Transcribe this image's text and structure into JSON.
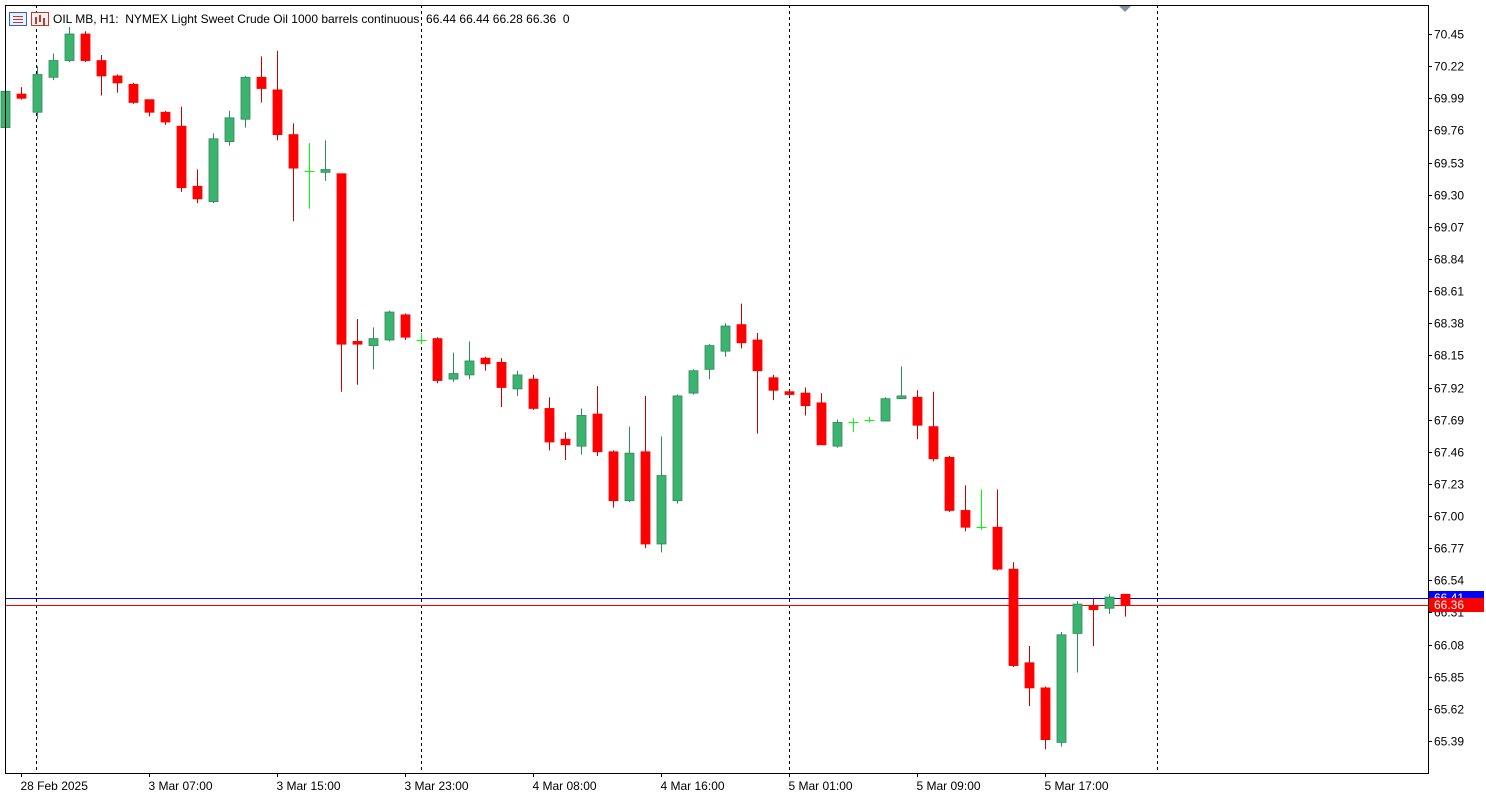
{
  "header": {
    "symbol_info": "OIL MB, H1:  NYMEX Light Sweet Crude Oil 1000 barrels continuous  66.44 66.44 66.28 66.36  0"
  },
  "colors": {
    "bull": "#3cb371",
    "bear": "#ff0000",
    "doji": "#00ff00",
    "bid_line": "#ff0000",
    "ask_line": "#0000ff",
    "background": "#ffffff",
    "axis": "#000000"
  },
  "price_labels": {
    "ask": "66.41",
    "bid": "66.36"
  },
  "chart_data": {
    "type": "candlestick",
    "title": "OIL MB, H1:  NYMEX Light Sweet Crude Oil 1000 barrels continuous",
    "ylim": [
      65.22,
      70.53
    ],
    "y_ticks": [
      70.45,
      70.22,
      69.99,
      69.76,
      69.53,
      69.3,
      69.07,
      68.84,
      68.61,
      68.38,
      68.15,
      67.92,
      67.69,
      67.46,
      67.23,
      67.0,
      66.77,
      66.54,
      66.31,
      66.08,
      65.85,
      65.62,
      65.39
    ],
    "x_labels": [
      {
        "text": "28 Feb 2025",
        "index": 1
      },
      {
        "text": "3 Mar 07:00",
        "index": 9
      },
      {
        "text": "3 Mar 15:00",
        "index": 17
      },
      {
        "text": "3 Mar 23:00",
        "index": 25
      },
      {
        "text": "4 Mar 08:00",
        "index": 33
      },
      {
        "text": "4 Mar 16:00",
        "index": 41
      },
      {
        "text": "5 Mar 01:00",
        "index": 49
      },
      {
        "text": "5 Mar 09:00",
        "index": 57
      },
      {
        "text": "5 Mar 17:00",
        "index": 65
      }
    ],
    "period_separators": [
      1,
      24,
      47,
      70
    ],
    "current_ask": 66.41,
    "current_bid": 66.36,
    "candles": [
      {
        "o": 69.78,
        "h": 70.05,
        "l": 69.76,
        "c": 70.04
      },
      {
        "o": 70.02,
        "h": 70.07,
        "l": 69.98,
        "c": 69.99
      },
      {
        "o": 69.89,
        "h": 70.22,
        "l": 69.84,
        "c": 70.16
      },
      {
        "o": 70.14,
        "h": 70.31,
        "l": 70.12,
        "c": 70.26
      },
      {
        "o": 70.26,
        "h": 70.5,
        "l": 70.25,
        "c": 70.45
      },
      {
        "o": 70.45,
        "h": 70.47,
        "l": 70.25,
        "c": 70.26
      },
      {
        "o": 70.26,
        "h": 70.3,
        "l": 70.01,
        "c": 70.15
      },
      {
        "o": 70.15,
        "h": 70.16,
        "l": 70.03,
        "c": 70.1
      },
      {
        "o": 70.09,
        "h": 70.1,
        "l": 69.95,
        "c": 69.96
      },
      {
        "o": 69.98,
        "h": 69.98,
        "l": 69.86,
        "c": 69.89
      },
      {
        "o": 69.89,
        "h": 69.9,
        "l": 69.8,
        "c": 69.82
      },
      {
        "o": 69.79,
        "h": 69.93,
        "l": 69.32,
        "c": 69.35
      },
      {
        "o": 69.36,
        "h": 69.48,
        "l": 69.24,
        "c": 69.27
      },
      {
        "o": 69.25,
        "h": 69.74,
        "l": 69.24,
        "c": 69.7
      },
      {
        "o": 69.68,
        "h": 69.9,
        "l": 69.65,
        "c": 69.85
      },
      {
        "o": 69.84,
        "h": 70.15,
        "l": 69.78,
        "c": 70.14
      },
      {
        "o": 70.14,
        "h": 70.29,
        "l": 69.96,
        "c": 70.06
      },
      {
        "o": 70.05,
        "h": 70.33,
        "l": 69.69,
        "c": 69.73
      },
      {
        "o": 69.73,
        "h": 69.81,
        "l": 69.11,
        "c": 69.49
      },
      {
        "o": 69.48,
        "h": 69.67,
        "l": 69.2,
        "c": 69.47
      },
      {
        "o": 69.46,
        "h": 69.69,
        "l": 69.4,
        "c": 69.48
      },
      {
        "o": 69.45,
        "h": 69.45,
        "l": 67.89,
        "c": 68.23
      },
      {
        "o": 68.25,
        "h": 68.41,
        "l": 67.94,
        "c": 68.23
      },
      {
        "o": 68.22,
        "h": 68.35,
        "l": 68.05,
        "c": 68.27
      },
      {
        "o": 68.26,
        "h": 68.47,
        "l": 68.25,
        "c": 68.46
      },
      {
        "o": 68.44,
        "h": 68.45,
        "l": 68.26,
        "c": 68.28
      },
      {
        "o": 68.27,
        "h": 68.31,
        "l": 68.23,
        "c": 68.26
      },
      {
        "o": 68.27,
        "h": 68.28,
        "l": 67.95,
        "c": 67.97
      },
      {
        "o": 67.98,
        "h": 68.17,
        "l": 67.96,
        "c": 68.02
      },
      {
        "o": 68.01,
        "h": 68.25,
        "l": 67.98,
        "c": 68.11
      },
      {
        "o": 68.13,
        "h": 68.14,
        "l": 68.04,
        "c": 68.09
      },
      {
        "o": 68.1,
        "h": 68.13,
        "l": 67.78,
        "c": 67.92
      },
      {
        "o": 67.91,
        "h": 68.04,
        "l": 67.86,
        "c": 68.01
      },
      {
        "o": 67.98,
        "h": 68.01,
        "l": 67.76,
        "c": 67.77
      },
      {
        "o": 67.77,
        "h": 67.85,
        "l": 67.47,
        "c": 67.53
      },
      {
        "o": 67.55,
        "h": 67.6,
        "l": 67.4,
        "c": 67.51
      },
      {
        "o": 67.5,
        "h": 67.77,
        "l": 67.44,
        "c": 67.72
      },
      {
        "o": 67.73,
        "h": 67.93,
        "l": 67.43,
        "c": 67.46
      },
      {
        "o": 67.46,
        "h": 67.47,
        "l": 67.06,
        "c": 67.11
      },
      {
        "o": 67.11,
        "h": 67.64,
        "l": 67.1,
        "c": 67.45
      },
      {
        "o": 67.46,
        "h": 67.86,
        "l": 66.77,
        "c": 66.8
      },
      {
        "o": 66.8,
        "h": 67.57,
        "l": 66.74,
        "c": 67.29
      },
      {
        "o": 67.11,
        "h": 67.87,
        "l": 67.09,
        "c": 67.86
      },
      {
        "o": 67.88,
        "h": 68.05,
        "l": 67.87,
        "c": 68.04
      },
      {
        "o": 68.05,
        "h": 68.23,
        "l": 67.98,
        "c": 68.22
      },
      {
        "o": 68.18,
        "h": 68.38,
        "l": 68.14,
        "c": 68.36
      },
      {
        "o": 68.37,
        "h": 68.52,
        "l": 68.2,
        "c": 68.24
      },
      {
        "o": 68.26,
        "h": 68.31,
        "l": 67.59,
        "c": 68.04
      },
      {
        "o": 67.99,
        "h": 68.01,
        "l": 67.83,
        "c": 67.9
      },
      {
        "o": 67.89,
        "h": 67.9,
        "l": 67.86,
        "c": 67.87
      },
      {
        "o": 67.88,
        "h": 67.92,
        "l": 67.72,
        "c": 67.79
      },
      {
        "o": 67.81,
        "h": 67.88,
        "l": 67.51,
        "c": 67.51
      },
      {
        "o": 67.5,
        "h": 67.69,
        "l": 67.49,
        "c": 67.67
      },
      {
        "o": 67.67,
        "h": 67.7,
        "l": 67.6,
        "c": 67.67
      },
      {
        "o": 67.69,
        "h": 67.71,
        "l": 67.67,
        "c": 67.69
      },
      {
        "o": 67.68,
        "h": 67.85,
        "l": 67.68,
        "c": 67.84
      },
      {
        "o": 67.84,
        "h": 68.07,
        "l": 67.84,
        "c": 67.86
      },
      {
        "o": 67.85,
        "h": 67.9,
        "l": 67.55,
        "c": 67.65
      },
      {
        "o": 67.64,
        "h": 67.89,
        "l": 67.39,
        "c": 67.41
      },
      {
        "o": 67.42,
        "h": 67.43,
        "l": 67.03,
        "c": 67.04
      },
      {
        "o": 67.04,
        "h": 67.22,
        "l": 66.89,
        "c": 66.92
      },
      {
        "o": 66.92,
        "h": 67.19,
        "l": 66.9,
        "c": 66.92
      },
      {
        "o": 66.92,
        "h": 67.19,
        "l": 66.61,
        "c": 66.62
      },
      {
        "o": 66.62,
        "h": 66.67,
        "l": 65.92,
        "c": 65.93
      },
      {
        "o": 65.95,
        "h": 66.07,
        "l": 65.64,
        "c": 65.77
      },
      {
        "o": 65.77,
        "h": 65.78,
        "l": 65.33,
        "c": 65.4
      },
      {
        "o": 65.38,
        "h": 66.17,
        "l": 65.35,
        "c": 66.15
      },
      {
        "o": 66.16,
        "h": 66.39,
        "l": 65.88,
        "c": 66.37
      },
      {
        "o": 66.36,
        "h": 66.41,
        "l": 66.07,
        "c": 66.33
      },
      {
        "o": 66.34,
        "h": 66.44,
        "l": 66.3,
        "c": 66.42
      },
      {
        "o": 66.44,
        "h": 66.44,
        "l": 66.28,
        "c": 66.36
      }
    ]
  }
}
